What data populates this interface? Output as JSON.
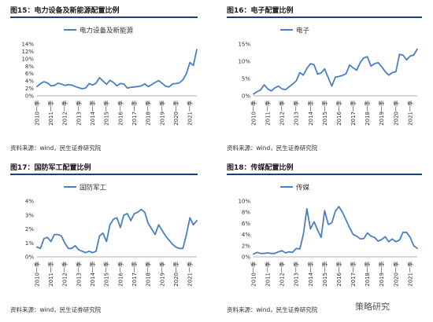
{
  "source_text": "资料来源：wind，民生证券研究院",
  "watermark": "策略研究",
  "x_ticks": [
    "2010一季",
    "2011一季",
    "2012一季",
    "2013一季",
    "2014一季",
    "2015一季",
    "2016一季",
    "2017一季",
    "2018一季",
    "2019一季",
    "2020一季",
    "2021一季"
  ],
  "chart_data": [
    {
      "type": "line",
      "title": "图15：电力设备及新能源配置比例",
      "legend": "电力设备及新能源",
      "legend_position": "top",
      "color": "#4a7fc1",
      "y_ticks": [
        "0%",
        "2%",
        "4%",
        "6%",
        "8%",
        "10%",
        "12%",
        "14%"
      ],
      "ylim": [
        0,
        14
      ],
      "x_range": [
        2010.0,
        2021.5
      ],
      "x": [
        2010.0,
        2010.25,
        2010.5,
        2010.75,
        2011.0,
        2011.25,
        2011.5,
        2011.75,
        2012.0,
        2012.25,
        2012.5,
        2012.75,
        2013.0,
        2013.25,
        2013.5,
        2013.75,
        2014.0,
        2014.25,
        2014.5,
        2014.75,
        2015.0,
        2015.25,
        2015.5,
        2015.75,
        2016.0,
        2016.25,
        2016.5,
        2016.75,
        2017.0,
        2017.25,
        2017.5,
        2017.75,
        2018.0,
        2018.25,
        2018.5,
        2018.75,
        2019.0,
        2019.25,
        2019.5,
        2019.75,
        2020.0,
        2020.25,
        2020.5,
        2020.75,
        2021.0,
        2021.25,
        2021.5
      ],
      "values": [
        2.5,
        3.3,
        3.8,
        3.5,
        2.7,
        2.8,
        3.4,
        3.2,
        2.8,
        3.0,
        2.9,
        2.5,
        2.2,
        1.9,
        2.1,
        3.3,
        2.9,
        3.4,
        4.9,
        4.0,
        3.1,
        4.2,
        3.6,
        2.7,
        3.3,
        3.2,
        2.1,
        2.3,
        2.4,
        2.5,
        2.7,
        3.2,
        2.5,
        3.0,
        3.6,
        4.1,
        3.4,
        2.6,
        2.4,
        3.2,
        3.3,
        3.5,
        4.3,
        6.0,
        9.0,
        8.2,
        12.5
      ]
    },
    {
      "type": "line",
      "title": "图16：电子配置比例",
      "legend": "电子",
      "legend_position": "top",
      "color": "#4a7fc1",
      "y_ticks": [
        "0%",
        "5%",
        "10%",
        "15%"
      ],
      "ylim": [
        0,
        15
      ],
      "x_range": [
        2010.0,
        2021.5
      ],
      "x": [
        2010.0,
        2010.25,
        2010.5,
        2010.75,
        2011.0,
        2011.25,
        2011.5,
        2011.75,
        2012.0,
        2012.25,
        2012.5,
        2012.75,
        2013.0,
        2013.25,
        2013.5,
        2013.75,
        2014.0,
        2014.25,
        2014.5,
        2014.75,
        2015.0,
        2015.25,
        2015.5,
        2015.75,
        2016.0,
        2016.25,
        2016.5,
        2016.75,
        2017.0,
        2017.25,
        2017.5,
        2017.75,
        2018.0,
        2018.25,
        2018.5,
        2018.75,
        2019.0,
        2019.25,
        2019.5,
        2019.75,
        2020.0,
        2020.25,
        2020.5,
        2020.75,
        2021.0,
        2021.25,
        2021.5
      ],
      "values": [
        0.5,
        1.2,
        1.7,
        3.2,
        2.0,
        1.4,
        2.3,
        2.8,
        2.0,
        1.8,
        2.6,
        3.4,
        4.3,
        6.7,
        6.0,
        7.9,
        9.3,
        9.0,
        6.3,
        6.6,
        7.8,
        5.2,
        2.8,
        5.4,
        5.6,
        5.9,
        6.4,
        8.9,
        8.1,
        7.4,
        9.7,
        11.0,
        11.3,
        8.6,
        9.3,
        9.6,
        8.4,
        7.0,
        6.0,
        6.7,
        7.0,
        12.0,
        11.8,
        10.4,
        11.5,
        11.8,
        13.5
      ]
    },
    {
      "type": "line",
      "title": "图17：国防军工配置比例",
      "legend": "国防军工",
      "legend_position": "top",
      "color": "#4a7fc1",
      "y_ticks": [
        "0%",
        "1%",
        "2%",
        "3%",
        "4%"
      ],
      "ylim": [
        0,
        4
      ],
      "x_range": [
        2010.0,
        2021.5
      ],
      "x": [
        2010.0,
        2010.25,
        2010.5,
        2010.75,
        2011.0,
        2011.25,
        2011.5,
        2011.75,
        2012.0,
        2012.25,
        2012.5,
        2012.75,
        2013.0,
        2013.25,
        2013.5,
        2013.75,
        2014.0,
        2014.25,
        2014.5,
        2014.75,
        2015.0,
        2015.25,
        2015.5,
        2015.75,
        2016.0,
        2016.25,
        2016.5,
        2016.75,
        2017.0,
        2017.25,
        2017.5,
        2017.75,
        2018.0,
        2018.25,
        2018.5,
        2018.75,
        2019.0,
        2019.25,
        2019.5,
        2019.75,
        2020.0,
        2020.25,
        2020.5,
        2020.75,
        2021.0,
        2021.25,
        2021.5
      ],
      "values": [
        0.7,
        0.6,
        1.3,
        1.4,
        1.1,
        1.6,
        1.6,
        1.5,
        1.0,
        0.6,
        0.6,
        0.8,
        0.5,
        0.4,
        0.3,
        0.4,
        0.3,
        0.4,
        1.5,
        1.7,
        1.1,
        2.3,
        2.7,
        2.8,
        2.1,
        3.0,
        3.1,
        2.6,
        3.1,
        3.2,
        3.4,
        3.2,
        2.4,
        2.0,
        1.6,
        2.3,
        1.9,
        1.5,
        1.2,
        0.9,
        0.7,
        0.6,
        0.6,
        1.6,
        2.8,
        2.3,
        2.6
      ]
    },
    {
      "type": "line",
      "title": "图18：传媒配置比例",
      "legend": "传媒",
      "legend_position": "top",
      "color": "#4a7fc1",
      "y_ticks": [
        "0%",
        "2%",
        "4%",
        "6%",
        "8%",
        "10%"
      ],
      "ylim": [
        0,
        10
      ],
      "x_range": [
        2010.0,
        2021.5
      ],
      "x": [
        2010.0,
        2010.25,
        2010.5,
        2010.75,
        2011.0,
        2011.25,
        2011.5,
        2011.75,
        2012.0,
        2012.25,
        2012.5,
        2012.75,
        2013.0,
        2013.25,
        2013.5,
        2013.75,
        2014.0,
        2014.25,
        2014.5,
        2014.75,
        2015.0,
        2015.25,
        2015.5,
        2015.75,
        2016.0,
        2016.25,
        2016.5,
        2016.75,
        2017.0,
        2017.25,
        2017.5,
        2017.75,
        2018.0,
        2018.25,
        2018.5,
        2018.75,
        2019.0,
        2019.25,
        2019.5,
        2019.75,
        2020.0,
        2020.25,
        2020.5,
        2020.75,
        2021.0,
        2021.25,
        2021.5
      ],
      "values": [
        0.5,
        0.8,
        0.6,
        0.6,
        0.7,
        0.6,
        0.6,
        0.9,
        1.1,
        0.7,
        0.9,
        0.8,
        1.5,
        1.4,
        4.0,
        8.6,
        5.0,
        6.3,
        4.8,
        3.5,
        8.3,
        5.8,
        6.1,
        8.2,
        9.0,
        8.0,
        6.6,
        5.2,
        4.0,
        3.7,
        3.2,
        3.3,
        4.3,
        3.7,
        3.5,
        2.8,
        3.1,
        3.6,
        2.7,
        3.2,
        2.7,
        3.0,
        4.4,
        4.4,
        3.5,
        2.0,
        1.5
      ]
    }
  ]
}
